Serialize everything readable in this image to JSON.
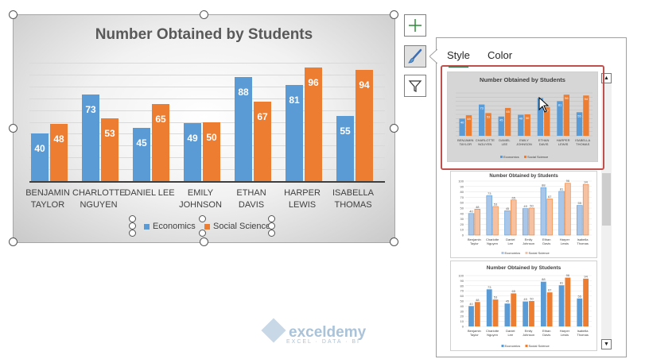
{
  "chart": {
    "title": "Number Obtained by Students",
    "categories": [
      "BENJAMIN\nTAYLOR",
      "CHARLOTTE\nNGUYEN",
      "DANIEL LEE",
      "EMILY\nJOHNSON",
      "ETHAN\nDAVIS",
      "HARPER\nLEWIS",
      "ISABELLA\nTHOMAS"
    ],
    "legend": {
      "economics": "Economics",
      "social": "Social Science"
    }
  },
  "chart_data": {
    "type": "bar",
    "title": "Number Obtained by Students",
    "categories": [
      "BENJAMIN TAYLOR",
      "CHARLOTTE NGUYEN",
      "DANIEL LEE",
      "EMILY JOHNSON",
      "ETHAN DAVIS",
      "HARPER LEWIS",
      "ISABELLA THOMAS"
    ],
    "series": [
      {
        "name": "Economics",
        "values": [
          40,
          73,
          45,
          49,
          88,
          81,
          55
        ],
        "color": "#5b9bd5"
      },
      {
        "name": "Social Science",
        "values": [
          48,
          53,
          65,
          50,
          67,
          96,
          94
        ],
        "color": "#ed7d31"
      }
    ],
    "ylim": [
      0,
      100
    ],
    "grid": true,
    "legend_position": "bottom"
  },
  "panel": {
    "tabs": [
      "Style",
      "Color"
    ],
    "thumb_title": "Number Obtained by Students",
    "thumb_categories": [
      "Benjamin Taylor",
      "Charlotte Nguyen",
      "Daniel Lee",
      "Emily Johnson",
      "Ethan Davis",
      "Harper Lewis",
      "Isabella Thomas"
    ],
    "thumb_categories_upper": [
      "BENJAMIN TAYLOR",
      "CHARLOTTE NGUYEN",
      "DANIEL LEE",
      "EMILY JOHNSON",
      "ETHAN DAVIS",
      "HARPER LEWIS",
      "ISABELLA THOMAS"
    ],
    "thumb_legend": [
      "Economics",
      "Social Science"
    ],
    "y_ticks": [
      "100",
      "90",
      "80",
      "70",
      "60",
      "50",
      "40",
      "30",
      "20",
      "10",
      "0"
    ]
  },
  "icons": {
    "add": "plus-icon",
    "brush": "brush-icon",
    "filter": "filter-icon"
  },
  "watermark": {
    "name": "exceldemy",
    "sub": "EXCEL · DATA · BI"
  }
}
